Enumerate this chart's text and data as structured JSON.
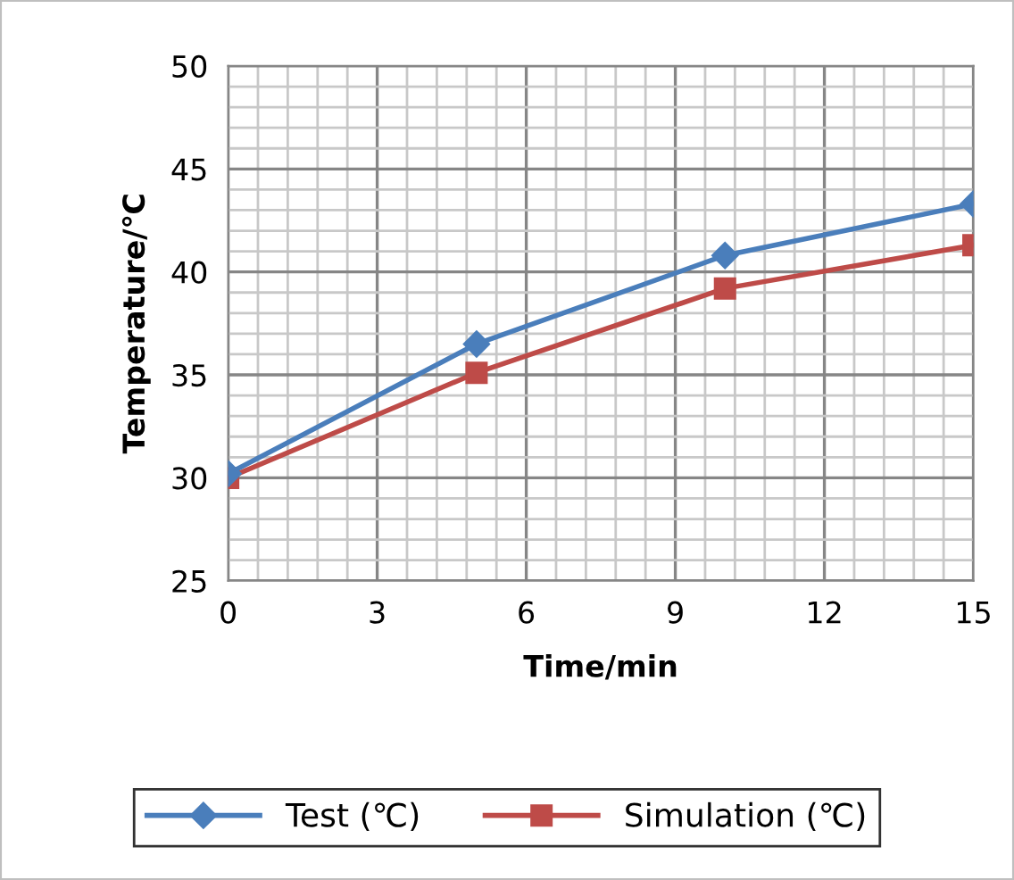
{
  "chart_data": {
    "type": "line",
    "xlabel": "Time/min",
    "ylabel": "Temperature/℃",
    "x": [
      0,
      5,
      10,
      15
    ],
    "series": [
      {
        "name": "Test (℃)",
        "color": "#4a7ebb",
        "marker": "diamond",
        "values": [
          30.2,
          36.5,
          40.8,
          43.3
        ]
      },
      {
        "name": "Simulation (℃)",
        "color": "#be4b48",
        "marker": "square",
        "values": [
          30.0,
          35.1,
          39.2,
          41.3
        ]
      }
    ],
    "xlim": [
      0,
      15
    ],
    "xticks": [
      0,
      3,
      6,
      9,
      12,
      15
    ],
    "ylim": [
      25,
      50
    ],
    "yticks": [
      25,
      30,
      35,
      40,
      45,
      50
    ],
    "grid": true,
    "legend": "bottom",
    "line_style": "solid"
  }
}
